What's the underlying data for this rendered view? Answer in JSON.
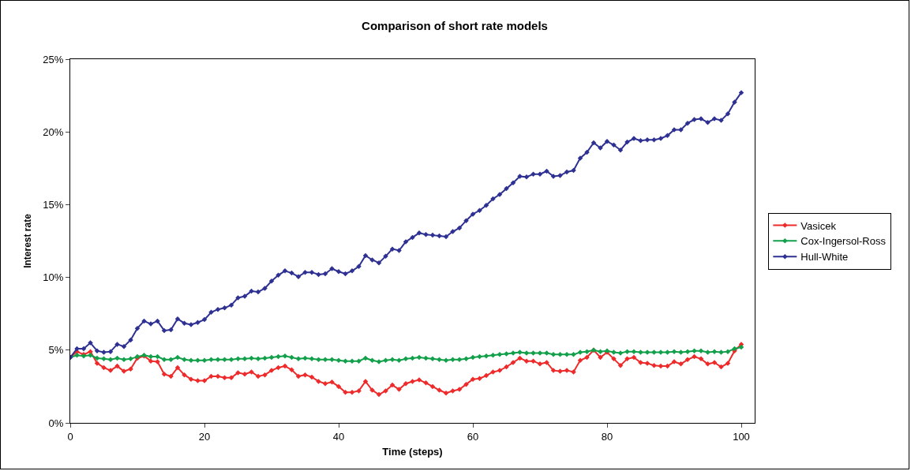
{
  "chart_data": {
    "type": "line",
    "title": "Comparison of short rate models",
    "xlabel": "Time (steps)",
    "ylabel": "Interest rate",
    "x": [
      0,
      1,
      2,
      3,
      4,
      5,
      6,
      7,
      8,
      9,
      10,
      11,
      12,
      13,
      14,
      15,
      16,
      17,
      18,
      19,
      20,
      21,
      22,
      23,
      24,
      25,
      26,
      27,
      28,
      29,
      30,
      31,
      32,
      33,
      34,
      35,
      36,
      37,
      38,
      39,
      40,
      41,
      42,
      43,
      44,
      45,
      46,
      47,
      48,
      49,
      50,
      51,
      52,
      53,
      54,
      55,
      56,
      57,
      58,
      59,
      60,
      61,
      62,
      63,
      64,
      65,
      66,
      67,
      68,
      69,
      70,
      71,
      72,
      73,
      74,
      75,
      76,
      77,
      78,
      79,
      80,
      81,
      82,
      83,
      84,
      85,
      86,
      87,
      88,
      89,
      90,
      91,
      92,
      93,
      94,
      95,
      96,
      97,
      98,
      99,
      100
    ],
    "series": [
      {
        "name": "Vasicek",
        "color": "#ee2a2a",
        "values": [
          4.5,
          4.9,
          4.7,
          4.9,
          4.1,
          3.8,
          3.6,
          3.9,
          3.55,
          3.7,
          4.45,
          4.6,
          4.25,
          4.2,
          3.35,
          3.2,
          3.8,
          3.3,
          3.0,
          2.9,
          2.9,
          3.2,
          3.2,
          3.1,
          3.1,
          3.45,
          3.35,
          3.5,
          3.2,
          3.3,
          3.6,
          3.8,
          3.9,
          3.65,
          3.2,
          3.3,
          3.15,
          2.85,
          2.7,
          2.8,
          2.5,
          2.1,
          2.1,
          2.2,
          2.85,
          2.25,
          1.95,
          2.2,
          2.6,
          2.3,
          2.7,
          2.85,
          2.95,
          2.75,
          2.5,
          2.25,
          2.05,
          2.2,
          2.3,
          2.65,
          3.0,
          3.05,
          3.25,
          3.5,
          3.6,
          3.85,
          4.15,
          4.45,
          4.25,
          4.25,
          4.05,
          4.15,
          3.6,
          3.55,
          3.6,
          3.5,
          4.3,
          4.5,
          5.0,
          4.5,
          4.85,
          4.4,
          3.95,
          4.4,
          4.5,
          4.15,
          4.1,
          3.95,
          3.9,
          3.9,
          4.2,
          4.05,
          4.35,
          4.55,
          4.4,
          4.05,
          4.15,
          3.85,
          4.1,
          4.95,
          5.4
        ]
      },
      {
        "name": "Cox-Ingersol-Ross",
        "color": "#12a04a",
        "values": [
          4.5,
          4.65,
          4.6,
          4.65,
          4.45,
          4.4,
          4.35,
          4.45,
          4.35,
          4.4,
          4.55,
          4.65,
          4.55,
          4.55,
          4.35,
          4.35,
          4.5,
          4.35,
          4.3,
          4.3,
          4.3,
          4.35,
          4.35,
          4.35,
          4.35,
          4.4,
          4.4,
          4.45,
          4.4,
          4.45,
          4.5,
          4.55,
          4.6,
          4.5,
          4.4,
          4.45,
          4.4,
          4.35,
          4.35,
          4.35,
          4.3,
          4.25,
          4.25,
          4.25,
          4.45,
          4.3,
          4.2,
          4.3,
          4.35,
          4.3,
          4.4,
          4.45,
          4.5,
          4.45,
          4.4,
          4.35,
          4.3,
          4.35,
          4.35,
          4.4,
          4.5,
          4.55,
          4.6,
          4.65,
          4.7,
          4.75,
          4.8,
          4.85,
          4.8,
          4.8,
          4.8,
          4.8,
          4.7,
          4.7,
          4.7,
          4.7,
          4.85,
          4.9,
          5.0,
          4.9,
          4.95,
          4.85,
          4.8,
          4.9,
          4.9,
          4.85,
          4.85,
          4.85,
          4.85,
          4.85,
          4.9,
          4.85,
          4.9,
          4.95,
          4.95,
          4.85,
          4.9,
          4.85,
          4.9,
          5.1,
          5.2
        ]
      },
      {
        "name": "Hull-White",
        "color": "#2e3192",
        "values": [
          4.5,
          5.1,
          5.1,
          5.5,
          4.95,
          4.85,
          4.9,
          5.4,
          5.25,
          5.7,
          6.5,
          7.0,
          6.8,
          7.0,
          6.35,
          6.4,
          7.15,
          6.85,
          6.75,
          6.9,
          7.1,
          7.6,
          7.8,
          7.9,
          8.1,
          8.6,
          8.7,
          9.05,
          9.0,
          9.25,
          9.75,
          10.15,
          10.45,
          10.3,
          10.05,
          10.35,
          10.35,
          10.2,
          10.25,
          10.6,
          10.4,
          10.25,
          10.45,
          10.75,
          11.5,
          11.2,
          11.0,
          11.45,
          11.95,
          11.85,
          12.45,
          12.75,
          13.05,
          12.95,
          12.9,
          12.85,
          12.8,
          13.15,
          13.4,
          13.9,
          14.35,
          14.6,
          14.95,
          15.4,
          15.7,
          16.1,
          16.5,
          16.95,
          16.9,
          17.1,
          17.1,
          17.3,
          16.95,
          17.0,
          17.25,
          17.35,
          18.2,
          18.6,
          19.25,
          18.9,
          19.35,
          19.1,
          18.75,
          19.3,
          19.55,
          19.4,
          19.45,
          19.45,
          19.55,
          19.75,
          20.15,
          20.15,
          20.6,
          20.85,
          20.9,
          20.65,
          20.9,
          20.8,
          21.25,
          22.05,
          22.7
        ]
      }
    ],
    "xlim": [
      0,
      102
    ],
    "xticks": [
      0,
      20,
      40,
      60,
      80,
      100
    ],
    "ylim": [
      0,
      25
    ],
    "yticks": [
      {
        "value": 0,
        "label": "0%"
      },
      {
        "value": 5,
        "label": "5%"
      },
      {
        "value": 10,
        "label": "10%"
      },
      {
        "value": 15,
        "label": "15%"
      },
      {
        "value": 20,
        "label": "20%"
      },
      {
        "value": 25,
        "label": "25%"
      }
    ],
    "grid": false,
    "legend": "right",
    "marker": "diamond",
    "line_style": "solid"
  }
}
